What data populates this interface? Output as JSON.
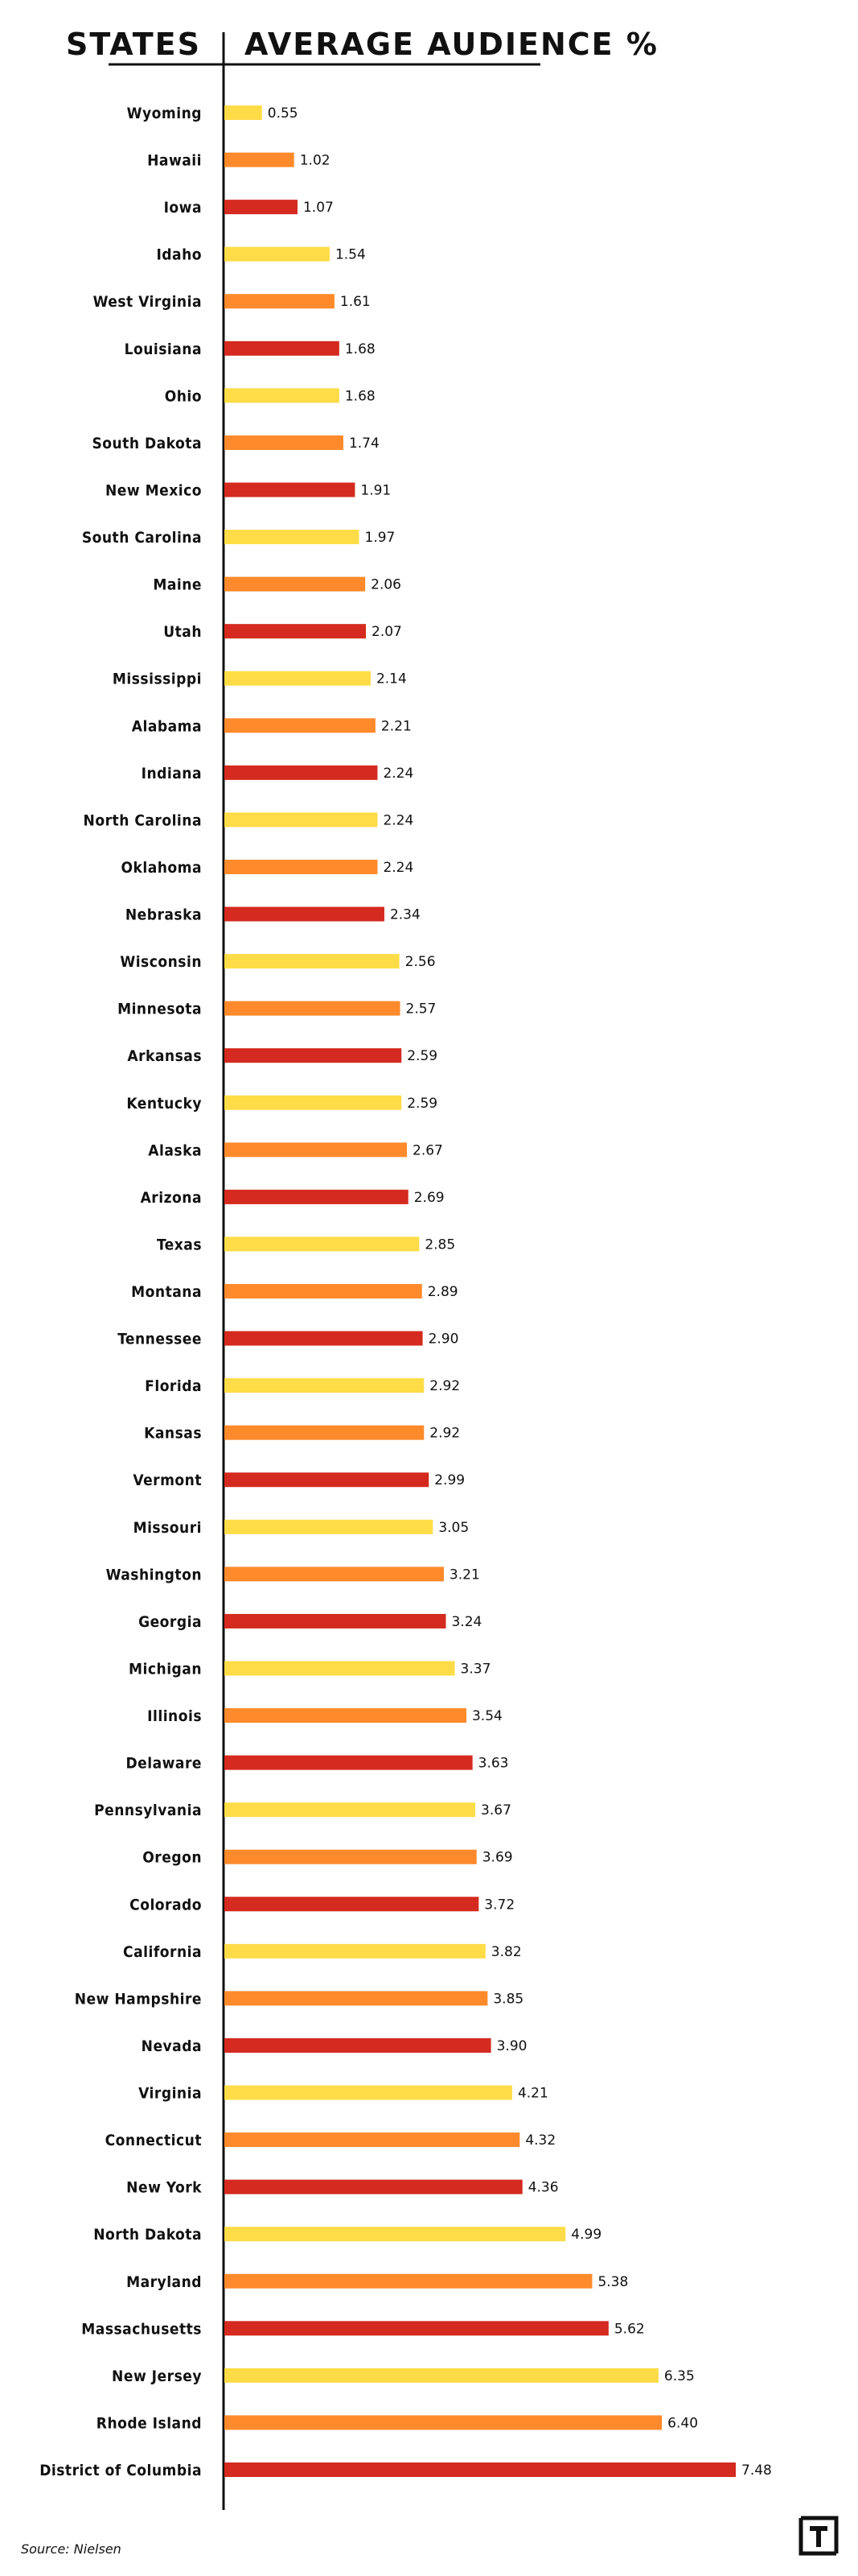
{
  "chart_data": {
    "type": "bar",
    "orientation": "horizontal",
    "xlabel_header": "AVERAGE AUDIENCE %",
    "ylabel_header": "STATES",
    "categories": [
      "Wyoming",
      "Hawaii",
      "Iowa",
      "Idaho",
      "West Virginia",
      "Louisiana",
      "Ohio",
      "South Dakota",
      "New Mexico",
      "South Carolina",
      "Maine",
      "Utah",
      "Mississippi",
      "Alabama",
      "Indiana",
      "North Carolina",
      "Oklahoma",
      "Nebraska",
      "Wisconsin",
      "Minnesota",
      "Arkansas",
      "Kentucky",
      "Alaska",
      "Arizona",
      "Texas",
      "Montana",
      "Tennessee",
      "Florida",
      "Kansas",
      "Vermont",
      "Missouri",
      "Washington",
      "Georgia",
      "Michigan",
      "Illinois",
      "Delaware",
      "Pennsylvania",
      "Oregon",
      "Colorado",
      "California",
      "New Hampshire",
      "Nevada",
      "Virginia",
      "Connecticut",
      "New York",
      "North Dakota",
      "Maryland",
      "Massachusetts",
      "New Jersey",
      "Rhode Island",
      "District of Columbia"
    ],
    "values": [
      0.55,
      1.02,
      1.07,
      1.54,
      1.61,
      1.68,
      1.68,
      1.74,
      1.91,
      1.97,
      2.06,
      2.07,
      2.14,
      2.21,
      2.24,
      2.24,
      2.24,
      2.34,
      2.56,
      2.57,
      2.59,
      2.59,
      2.67,
      2.69,
      2.85,
      2.89,
      2.9,
      2.92,
      2.92,
      2.99,
      3.05,
      3.21,
      3.24,
      3.37,
      3.54,
      3.63,
      3.67,
      3.69,
      3.72,
      3.82,
      3.85,
      3.9,
      4.21,
      4.32,
      4.36,
      4.99,
      5.38,
      5.62,
      6.35,
      6.4,
      7.48
    ],
    "value_labels": [
      "0.55",
      "1.02",
      "1.07",
      "1.54",
      "1.61",
      "1.68",
      "1.68",
      "1.74",
      "1.91",
      "1.97",
      "2.06",
      "2.07",
      "2.14",
      "2.21",
      "2.24",
      "2.24",
      "2.24",
      "2.34",
      "2.56",
      "2.57",
      "2.59",
      "2.59",
      "2.67",
      "2.69",
      "2.85",
      "2.89",
      "2.90",
      "2.92",
      "2.92",
      "2.99",
      "3.05",
      "3.21",
      "3.24",
      "3.37",
      "3.54",
      "3.63",
      "3.67",
      "3.69",
      "3.72",
      "3.82",
      "3.85",
      "3.90",
      "4.21",
      "4.32",
      "4.36",
      "4.99",
      "5.38",
      "5.62",
      "6.35",
      "6.40",
      "7.48"
    ],
    "bar_colors": [
      "#FDDC47",
      "#FF8A2B",
      "#D42A1F"
    ],
    "xlim": [
      0,
      7.48
    ],
    "grid": false,
    "legend": "none"
  },
  "source": "Source: Nielsen",
  "logo_letter": "T",
  "colors": {
    "text": "#111111",
    "axis": "#111111",
    "background": "#ffffff"
  }
}
